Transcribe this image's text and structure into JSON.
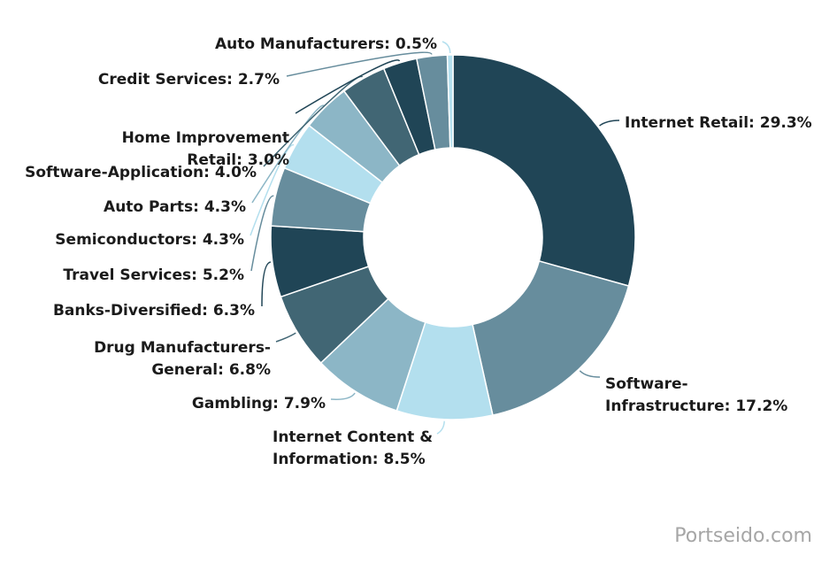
{
  "chart_data": {
    "type": "pie",
    "donut": true,
    "legend": "none",
    "slices": [
      {
        "label": "Internet Retail",
        "value": 29.3,
        "color": "#204556",
        "display": "Internet Retail: 29.3%"
      },
      {
        "label": "Software-Infrastructure",
        "value": 17.2,
        "color": "#678d9d",
        "display": [
          "Software-",
          "Infrastructure: 17.2%"
        ]
      },
      {
        "label": "Internet Content & Information",
        "value": 8.5,
        "color": "#b3dfee",
        "display": [
          "Internet Content &",
          "Information: 8.5%"
        ]
      },
      {
        "label": "Gambling",
        "value": 7.9,
        "color": "#8cb6c6",
        "display": "Gambling: 7.9%"
      },
      {
        "label": "Drug Manufacturers-General",
        "value": 6.8,
        "color": "#416674",
        "display": [
          "Drug Manufacturers-",
          "General: 6.8%"
        ]
      },
      {
        "label": "Banks-Diversified",
        "value": 6.3,
        "color": "#204556",
        "display": "Banks-Diversified: 6.3%"
      },
      {
        "label": "Travel Services",
        "value": 5.2,
        "color": "#678d9d",
        "display": "Travel Services: 5.2%"
      },
      {
        "label": "Semiconductors",
        "value": 4.3,
        "color": "#b3dfee",
        "display": "Semiconductors: 4.3%"
      },
      {
        "label": "Auto Parts",
        "value": 4.3,
        "color": "#8cb6c6",
        "display": "Auto Parts: 4.3%"
      },
      {
        "label": "Software-Application",
        "value": 4.0,
        "color": "#416674",
        "display": "Software-Application: 4.0%"
      },
      {
        "label": "Home Improvement Retail",
        "value": 3.0,
        "color": "#204556",
        "display": [
          "Home Improvement",
          "Retail: 3.0%"
        ]
      },
      {
        "label": "Credit Services",
        "value": 2.7,
        "color": "#678d9d",
        "display": "Credit Services: 2.7%"
      },
      {
        "label": "Auto Manufacturers",
        "value": 0.5,
        "color": "#b3dfee",
        "display": "Auto Manufacturers: 0.5%"
      }
    ]
  },
  "watermark": "Portseido.com"
}
